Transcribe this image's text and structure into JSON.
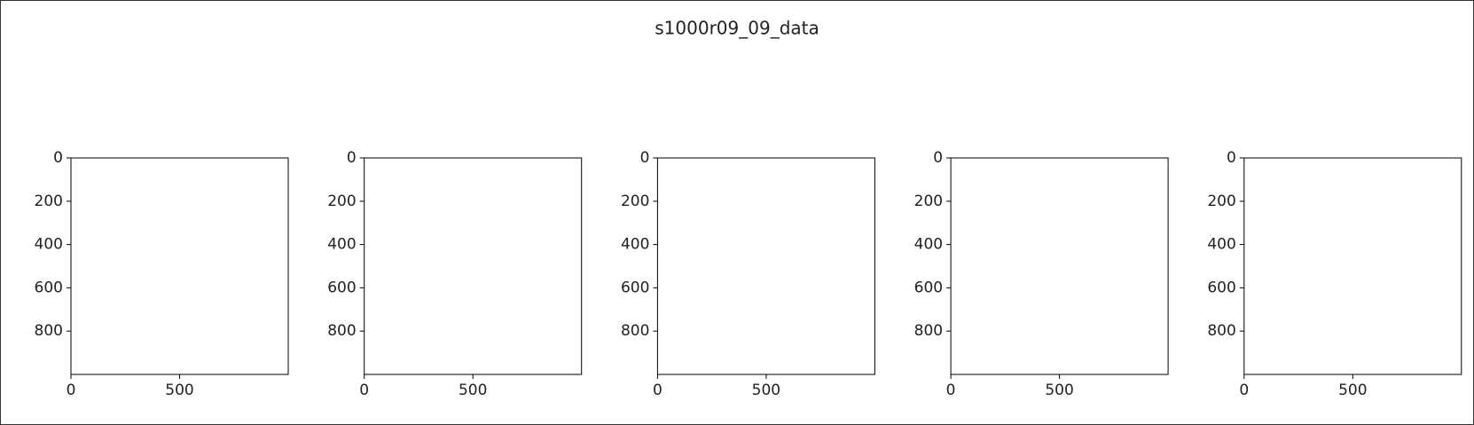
{
  "title": "s1000r09_09_data",
  "chart_data": [
    {
      "type": "image",
      "xlim": [
        0,
        1000
      ],
      "ylim": [
        1000,
        0
      ],
      "xticks": [
        0,
        500
      ],
      "yticks": [
        0,
        200,
        400,
        600,
        800
      ]
    },
    {
      "type": "image",
      "xlim": [
        0,
        1000
      ],
      "ylim": [
        1000,
        0
      ],
      "xticks": [
        0,
        500
      ],
      "yticks": [
        0,
        200,
        400,
        600,
        800
      ]
    },
    {
      "type": "image",
      "xlim": [
        0,
        1000
      ],
      "ylim": [
        1000,
        0
      ],
      "xticks": [
        0,
        500
      ],
      "yticks": [
        0,
        200,
        400,
        600,
        800
      ]
    },
    {
      "type": "image",
      "xlim": [
        0,
        1000
      ],
      "ylim": [
        1000,
        0
      ],
      "xticks": [
        0,
        500
      ],
      "yticks": [
        0,
        200,
        400,
        600,
        800
      ]
    },
    {
      "type": "image",
      "xlim": [
        0,
        1000
      ],
      "ylim": [
        1000,
        0
      ],
      "xticks": [
        0,
        500
      ],
      "yticks": [
        0,
        200,
        400,
        600,
        800
      ]
    }
  ]
}
